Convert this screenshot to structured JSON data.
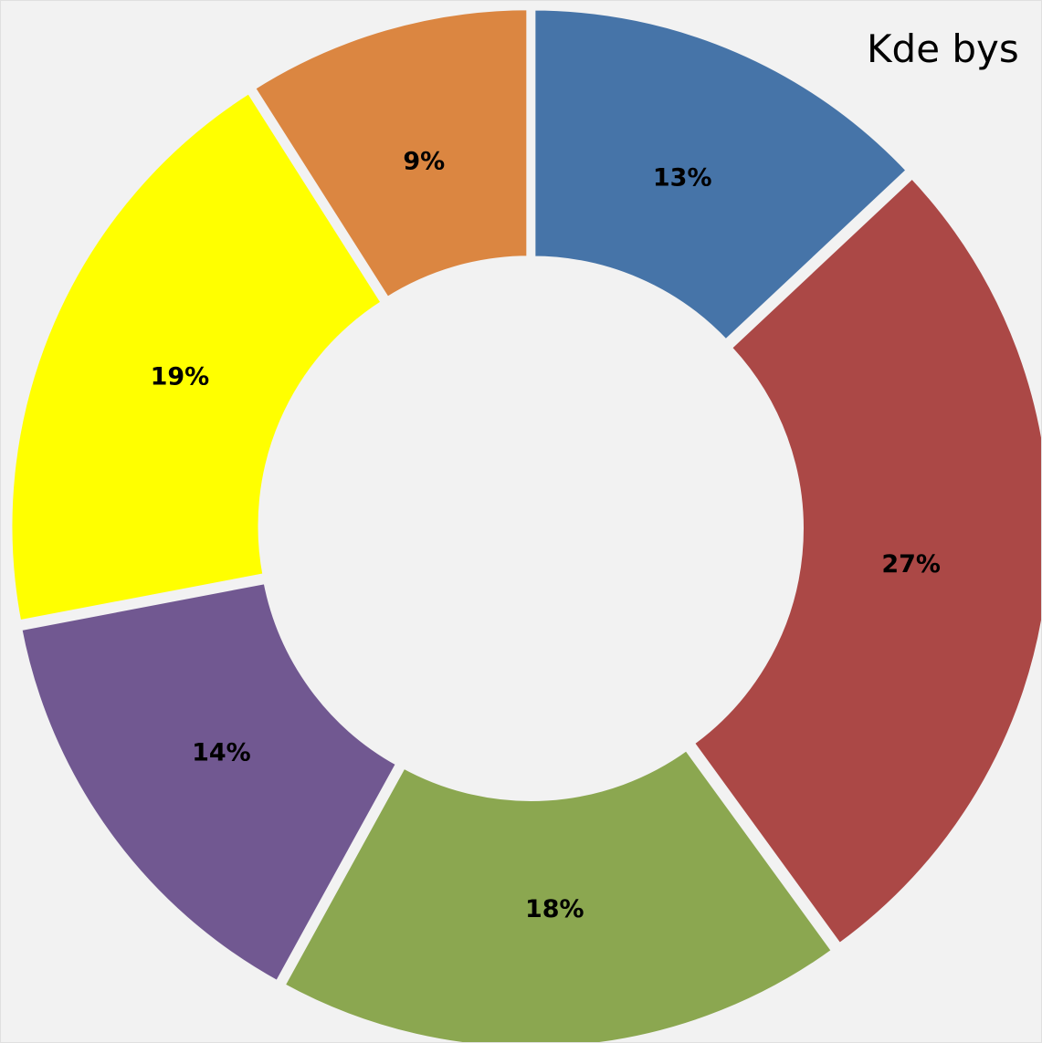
{
  "chart_data": {
    "type": "pie",
    "variant": "donut",
    "title": "Kde bys",
    "categories": [
      "",
      "",
      "",
      "",
      "",
      ""
    ],
    "values": [
      13,
      27,
      18,
      14,
      19,
      9
    ],
    "labels": [
      "13%",
      "27%",
      "18%",
      "14%",
      "19%",
      "9%"
    ],
    "colors": [
      "#4674a8",
      "#ab4846",
      "#8ba750",
      "#715891",
      "#ffff00",
      "#db8641"
    ],
    "background": "#f2f2f2",
    "start_angle": "12 o'clock",
    "direction": "clockwise",
    "legend": "none"
  }
}
